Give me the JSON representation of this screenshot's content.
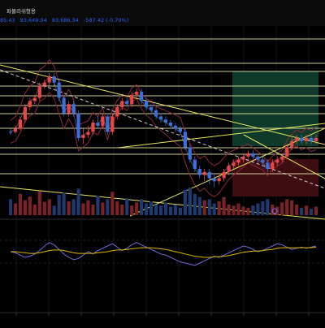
{
  "header": {
    "title": "파볼리쉬형용",
    "values": [
      "85.43",
      "83,649.04",
      "83,686.34",
      "-587.42 (-0.70%)"
    ],
    "value_color": "#2962ff",
    "change_color": "#2962ff"
  },
  "colors": {
    "background": "#000000",
    "up_candle": "#ef4444",
    "down_candle": "#3b6fe0",
    "trendline": "#e8e85a",
    "horizontal_line": "#eef0a8",
    "bollinger": "#8b2a3a",
    "bollinger_mid": "#9aa0a6",
    "rsi_line": "#6f6bd8",
    "rsi_signal": "#e0b400",
    "long_tp_zone": "#0f3a2a",
    "long_sl_zone": "#3d0d12",
    "grid": "#131416"
  },
  "chart_data": [
    {
      "type": "candlestick",
      "title": "",
      "note": "price y in display units (0 = top of price range, 100 = bottom)",
      "candles": [
        [
          46,
          46,
          44,
          48
        ],
        [
          46,
          44,
          42,
          47
        ],
        [
          44,
          38,
          36,
          45
        ],
        [
          38,
          30,
          28,
          40
        ],
        [
          30,
          26,
          24,
          32
        ],
        [
          26,
          24,
          22,
          28
        ],
        [
          24,
          16,
          14,
          26
        ],
        [
          16,
          14,
          12,
          18
        ],
        [
          14,
          10,
          8,
          16
        ],
        [
          10,
          14,
          8,
          16
        ],
        [
          14,
          24,
          12,
          26
        ],
        [
          24,
          34,
          22,
          36
        ],
        [
          34,
          28,
          26,
          36
        ],
        [
          28,
          34,
          26,
          36
        ],
        [
          34,
          50,
          32,
          52
        ],
        [
          50,
          48,
          44,
          54
        ],
        [
          48,
          46,
          42,
          50
        ],
        [
          46,
          40,
          38,
          48
        ],
        [
          40,
          42,
          36,
          44
        ],
        [
          42,
          36,
          34,
          44
        ],
        [
          36,
          46,
          34,
          48
        ],
        [
          46,
          36,
          34,
          48
        ],
        [
          36,
          30,
          28,
          38
        ],
        [
          30,
          26,
          24,
          32
        ],
        [
          26,
          28,
          24,
          30
        ],
        [
          28,
          22,
          20,
          30
        ],
        [
          22,
          20,
          18,
          24
        ],
        [
          20,
          26,
          18,
          28
        ],
        [
          26,
          30,
          24,
          32
        ],
        [
          30,
          32,
          28,
          34
        ],
        [
          32,
          36,
          30,
          38
        ],
        [
          36,
          38,
          34,
          40
        ],
        [
          38,
          40,
          36,
          42
        ],
        [
          40,
          42,
          38,
          44
        ],
        [
          42,
          44,
          40,
          46
        ],
        [
          44,
          46,
          42,
          48
        ],
        [
          46,
          56,
          44,
          58
        ],
        [
          56,
          64,
          54,
          66
        ],
        [
          64,
          70,
          62,
          72
        ],
        [
          70,
          74,
          68,
          76
        ],
        [
          74,
          72,
          70,
          78
        ],
        [
          72,
          76,
          70,
          80
        ],
        [
          76,
          78,
          74,
          82
        ],
        [
          78,
          76,
          74,
          80
        ],
        [
          76,
          72,
          70,
          78
        ],
        [
          72,
          68,
          66,
          74
        ],
        [
          68,
          66,
          64,
          70
        ],
        [
          66,
          64,
          62,
          68
        ],
        [
          64,
          62,
          60,
          66
        ],
        [
          62,
          60,
          58,
          64
        ],
        [
          60,
          62,
          58,
          64
        ],
        [
          62,
          64,
          60,
          66
        ],
        [
          64,
          66,
          62,
          68
        ],
        [
          66,
          70,
          64,
          72
        ],
        [
          70,
          66,
          64,
          72
        ],
        [
          66,
          64,
          62,
          68
        ],
        [
          64,
          62,
          60,
          66
        ],
        [
          62,
          56,
          54,
          64
        ],
        [
          56,
          52,
          50,
          58
        ],
        [
          52,
          50,
          48,
          54
        ],
        [
          50,
          52,
          48,
          54
        ],
        [
          52,
          50,
          48,
          54
        ],
        [
          50,
          52,
          48,
          54
        ],
        [
          52,
          50,
          48,
          54
        ]
      ],
      "volumes": [
        30,
        22,
        40,
        28,
        35,
        20,
        45,
        25,
        30,
        18,
        38,
        42,
        26,
        30,
        50,
        22,
        28,
        20,
        36,
        24,
        30,
        44,
        26,
        20,
        32,
        18,
        24,
        30,
        22,
        26,
        20,
        18,
        24,
        16,
        20,
        14,
        48,
        52,
        40,
        34,
        28,
        30,
        22,
        26,
        34,
        20,
        18,
        22,
        16,
        14,
        18,
        22,
        26,
        30,
        20,
        16,
        24,
        30,
        28,
        20,
        14,
        18,
        12,
        16
      ],
      "rsi": [
        50,
        48,
        44,
        40,
        42,
        46,
        52,
        60,
        66,
        62,
        54,
        46,
        40,
        36,
        38,
        44,
        50,
        46,
        52,
        56,
        60,
        64,
        58,
        52,
        56,
        62,
        66,
        62,
        58,
        54,
        50,
        46,
        44,
        40,
        36,
        32,
        30,
        28,
        26,
        30,
        34,
        38,
        42,
        40,
        44,
        48,
        52,
        56,
        60,
        58,
        54,
        50,
        52,
        56,
        60,
        64,
        62,
        58,
        54,
        56,
        58,
        56,
        58,
        60
      ],
      "rsi_signal": [
        50,
        50,
        49,
        48,
        47,
        47,
        48,
        50,
        52,
        53,
        53,
        52,
        50,
        48,
        47,
        47,
        47,
        47,
        48,
        49,
        50,
        52,
        53,
        53,
        54,
        55,
        56,
        57,
        57,
        57,
        56,
        55,
        54,
        52,
        50,
        48,
        46,
        44,
        42,
        41,
        40,
        40,
        41,
        41,
        42,
        43,
        45,
        47,
        49,
        50,
        51,
        51,
        52,
        53,
        54,
        56,
        57,
        57,
        57,
        57,
        57,
        57,
        57,
        58
      ]
    }
  ]
}
